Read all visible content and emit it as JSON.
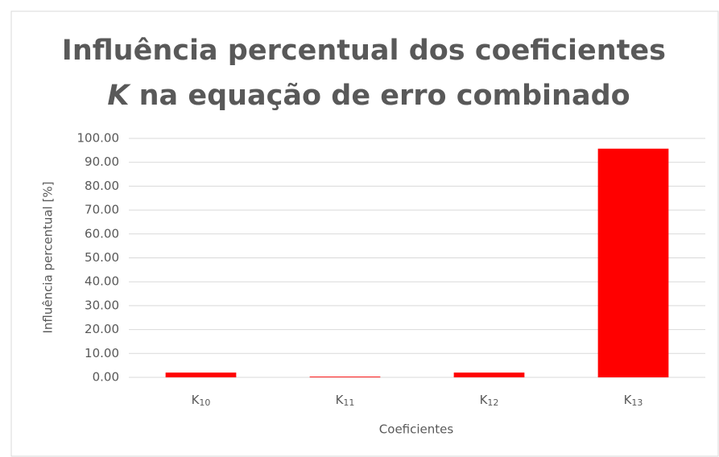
{
  "chart_data": {
    "type": "bar",
    "title": "Influência percentual dos coeficientes K na equação de erro combinado",
    "x_label": "Coeficientes",
    "y_label": "Influência percentual [%]",
    "categories": [
      "K10",
      "K11",
      "K12",
      "K13"
    ],
    "values": [
      2.0,
      0.3,
      2.0,
      95.7
    ],
    "color": "#ff0000",
    "ylim": [
      0,
      100
    ],
    "yticks": [
      {
        "value": 0,
        "label": "0.00"
      },
      {
        "value": 10,
        "label": "10.00"
      },
      {
        "value": 20,
        "label": "20.00"
      },
      {
        "value": 30,
        "label": "30.00"
      },
      {
        "value": 40,
        "label": "40.00"
      },
      {
        "value": 50,
        "label": "50.00"
      },
      {
        "value": 60,
        "label": "60.00"
      },
      {
        "value": 70,
        "label": "70.00"
      },
      {
        "value": 80,
        "label": "80.00"
      },
      {
        "value": 90,
        "label": "90.00"
      },
      {
        "value": 100,
        "label": "100.00"
      }
    ],
    "grid": true
  }
}
